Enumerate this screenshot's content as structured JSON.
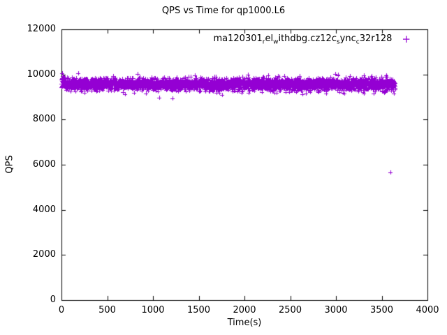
{
  "chart_data": {
    "type": "scatter",
    "title": "QPS vs Time for qp1000.L6",
    "xlabel": "Time(s)",
    "ylabel": "QPS",
    "xlim": [
      0,
      4000
    ],
    "ylim": [
      0,
      12000
    ],
    "xticks": [
      0,
      500,
      1000,
      1500,
      2000,
      2500,
      3000,
      3500,
      4000
    ],
    "yticks": [
      0,
      2000,
      4000,
      6000,
      8000,
      10000,
      12000
    ],
    "grid": false,
    "legend_position": "top-right-inside",
    "series": [
      {
        "name": "ma120301_rel_withdbg.cz12c_sync_c32r128",
        "marker": "plus",
        "color": "#9400D3",
        "synthetic_band": {
          "x_start": 0,
          "x_end": 3650,
          "n_points": 3600,
          "y_mean": 9560,
          "y_std": 130,
          "y_min": 8880,
          "y_max": 10050,
          "low_straggler_prob": 0.012,
          "low_straggler_drop": 450,
          "initial_spike_x_end": 45,
          "initial_spike_y_extra": 380
        },
        "outliers": [
          [
            3598,
            5650
          ]
        ]
      }
    ]
  }
}
